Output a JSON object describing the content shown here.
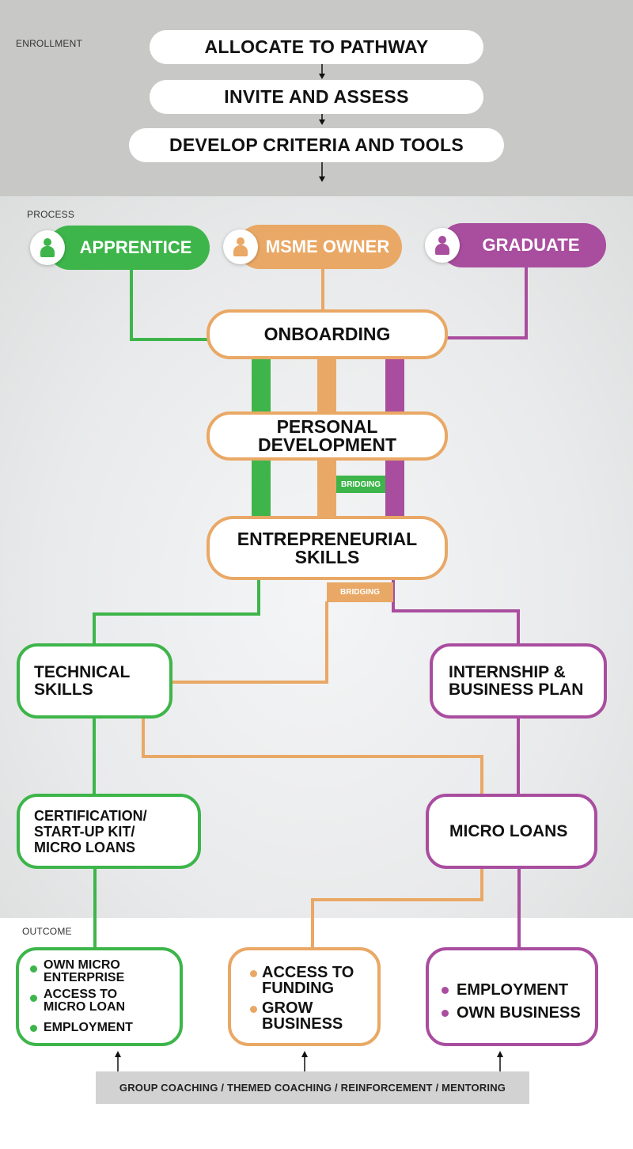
{
  "sections": {
    "enrollment": "ENROLLMENT",
    "process": "PROCESS",
    "outcome": "OUTCOME"
  },
  "enrollment_steps": [
    "ALLOCATE TO PATHWAY",
    "INVITE AND ASSESS",
    "DEVELOP CRITERIA AND TOOLS"
  ],
  "roles": {
    "apprentice": {
      "label": "APPRENTICE",
      "color": "#3db54a",
      "icon": "person-icon"
    },
    "msme_owner": {
      "label": "MSME OWNER",
      "color": "#e9a865",
      "icon": "person-icon"
    },
    "graduate": {
      "label": "GRADUATE",
      "color": "#a94d9f",
      "icon": "person-icon"
    }
  },
  "nodes": {
    "onboarding": "ONBOARDING",
    "personal_development": "PERSONAL\nDEVELOPMENT",
    "entrepreneurial_skills": "ENTREPRENEURIAL\nSKILLS",
    "technical_skills": "TECHNICAL\nSKILLS",
    "internship": "INTERNSHIP &\nBUSINESS PLAN",
    "certification": "CERTIFICATION/\nSTART-UP KIT/\nMICRO LOANS",
    "micro_loans": "MICRO LOANS"
  },
  "bridging": {
    "label1": "BRIDGING",
    "label2": "BRIDGING"
  },
  "outcomes": {
    "apprentice": [
      "OWN MICRO\nENTERPRISE",
      "ACCESS TO\nMICRO LOAN",
      "EMPLOYMENT"
    ],
    "msme_owner": [
      "ACCESS TO\nFUNDING",
      "GROW\nBUSINESS"
    ],
    "graduate": [
      "EMPLOYMENT",
      "OWN BUSINESS"
    ]
  },
  "coaching": "GROUP COACHING / THEMED COACHING / REINFORCEMENT / MENTORING",
  "colors": {
    "green": "#3db54a",
    "orange": "#e9a865",
    "purple": "#a94d9f",
    "enroll_bg": "#c8c8c6"
  }
}
